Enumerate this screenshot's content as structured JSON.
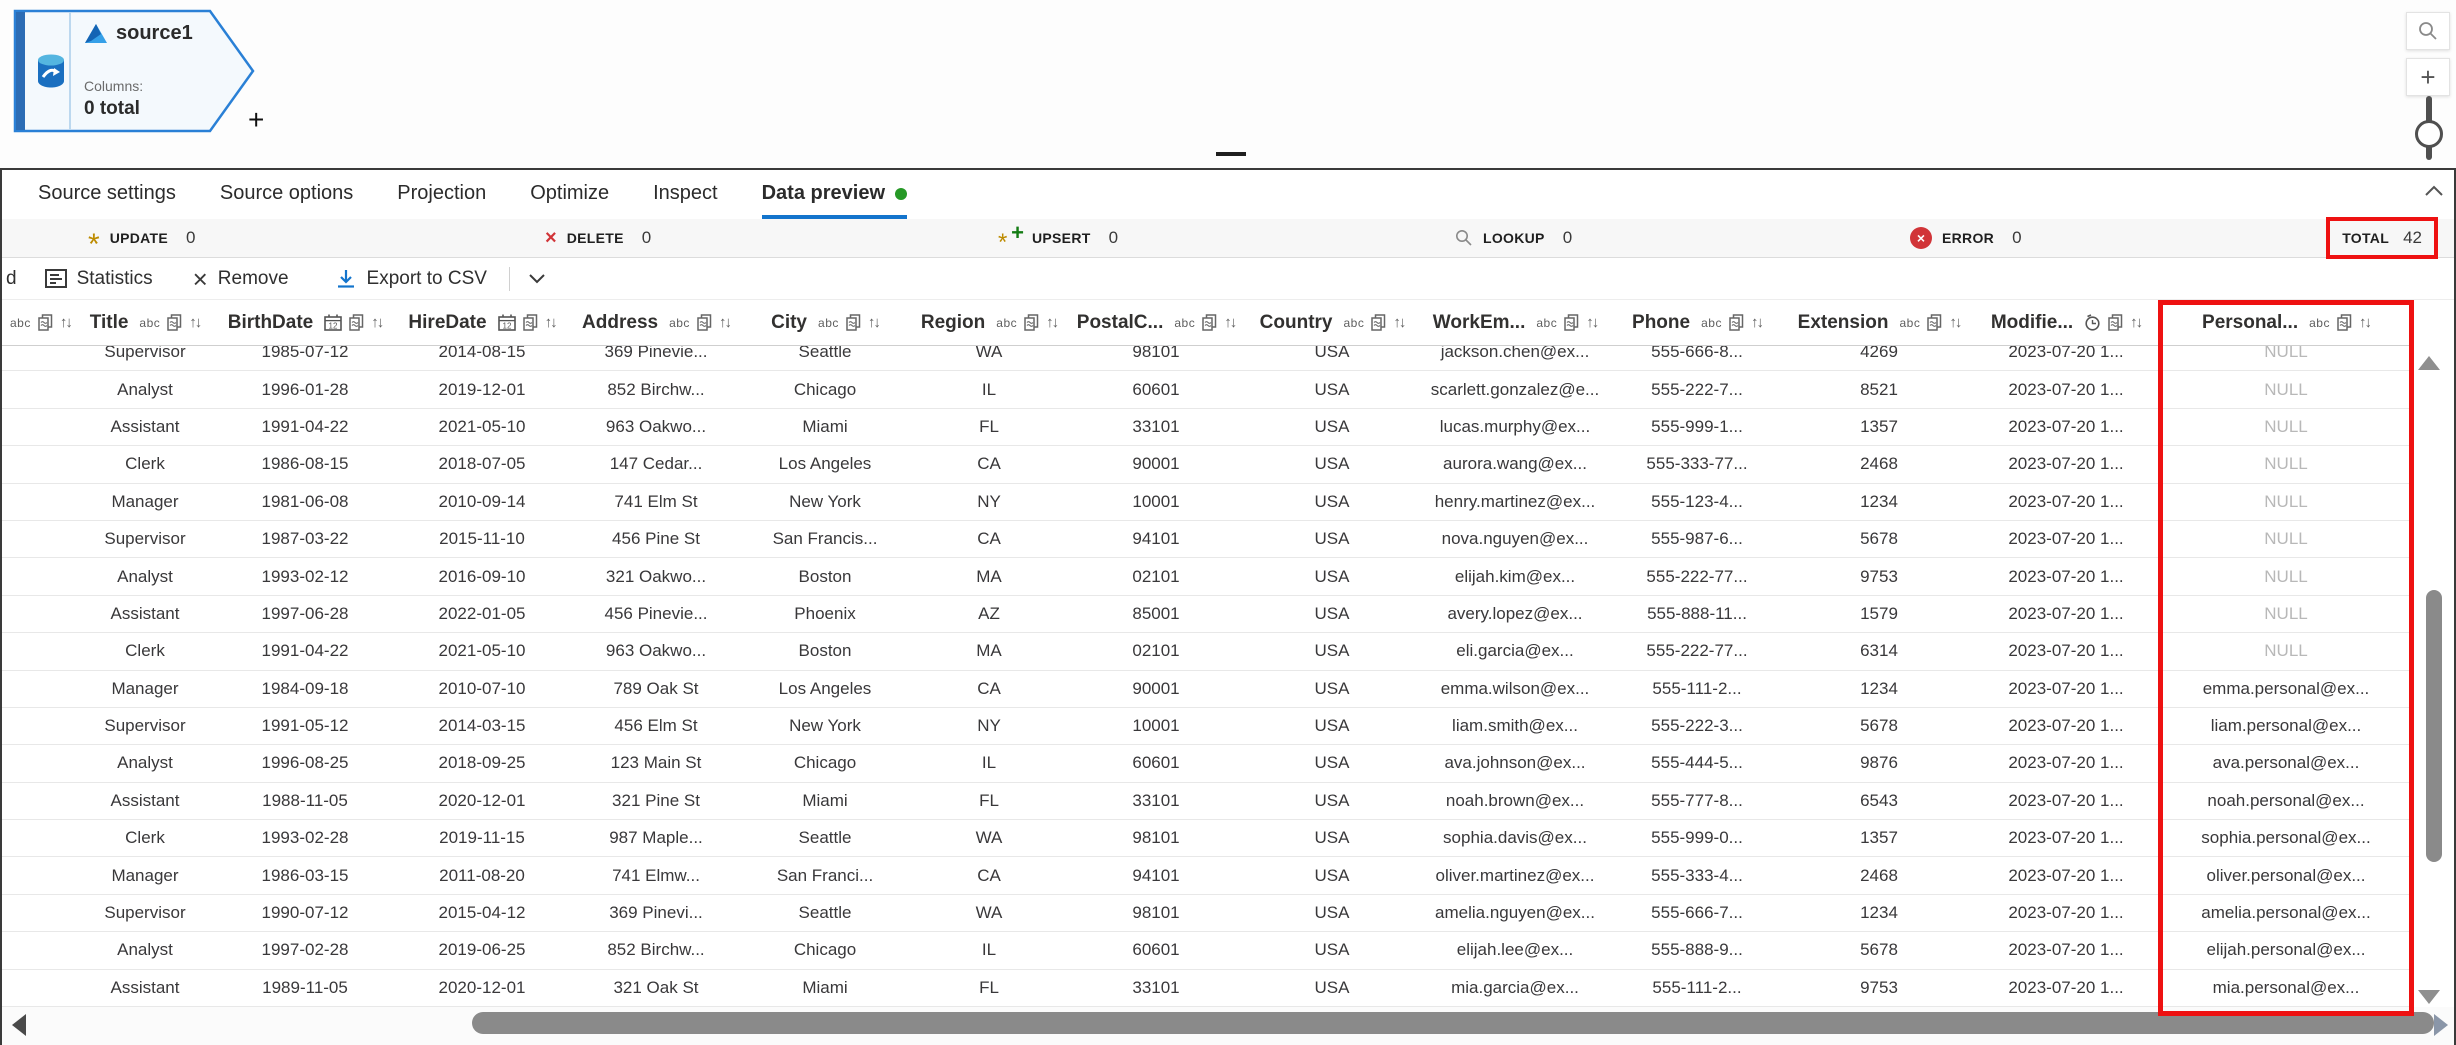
{
  "canvas": {
    "node": {
      "title": "source1",
      "columns_label": "Columns:",
      "columns_value": "0 total",
      "add_button": "+"
    }
  },
  "tabs": [
    {
      "label": "Source settings"
    },
    {
      "label": "Source options"
    },
    {
      "label": "Projection"
    },
    {
      "label": "Optimize"
    },
    {
      "label": "Inspect"
    },
    {
      "label": "Data preview",
      "active": true,
      "has_green_dot": true
    }
  ],
  "status_bar": {
    "items": [
      {
        "label": "UPDATE",
        "count": "0",
        "icon": "update-asterisk-icon"
      },
      {
        "label": "DELETE",
        "count": "0",
        "icon": "delete-x-icon"
      },
      {
        "label": "UPSERT",
        "count": "0",
        "icon": "upsert-plus-icon"
      },
      {
        "label": "LOOKUP",
        "count": "0",
        "icon": "lookup-magnifier-icon"
      },
      {
        "label": "ERROR",
        "count": "0",
        "icon": "error-circle-icon"
      }
    ],
    "total": {
      "label": "TOTAL",
      "count": "42",
      "annotated": true
    }
  },
  "toolbar": {
    "truncated_text": "d",
    "statistics_label": "Statistics",
    "remove_label": "Remove",
    "export_label": "Export to CSV"
  },
  "icons": {
    "update": "*",
    "delete": "×",
    "upsert_plus": "+",
    "upsert_star": "*",
    "error": "×",
    "remove": "×",
    "sort": "↑↓",
    "type_string": "abc"
  },
  "table": {
    "columns": [
      {
        "name": "",
        "type": "string",
        "note": "truncated-at-left-edge"
      },
      {
        "name": "Title",
        "type": "string"
      },
      {
        "name": "BirthDate",
        "type": "date"
      },
      {
        "name": "HireDate",
        "type": "date"
      },
      {
        "name": "Address",
        "type": "string"
      },
      {
        "name": "City",
        "type": "string"
      },
      {
        "name": "Region",
        "type": "string"
      },
      {
        "name": "PostalC...",
        "type": "string"
      },
      {
        "name": "Country",
        "type": "string"
      },
      {
        "name": "WorkEm...",
        "type": "string"
      },
      {
        "name": "Phone",
        "type": "string"
      },
      {
        "name": "Extension",
        "type": "string"
      },
      {
        "name": "Modifie...",
        "type": "timestamp"
      },
      {
        "name": "Personal...",
        "type": "string"
      }
    ],
    "rows": [
      [
        "Supervisor",
        "1985-07-12",
        "2014-08-15",
        "369 Pinevie...",
        "Seattle",
        "WA",
        "98101",
        "USA",
        "jackson.chen@ex...",
        "555-666-8...",
        "4269",
        "2023-07-20 1...",
        "NULL"
      ],
      [
        "Analyst",
        "1996-01-28",
        "2019-12-01",
        "852 Birchw...",
        "Chicago",
        "IL",
        "60601",
        "USA",
        "scarlett.gonzalez@e...",
        "555-222-7...",
        "8521",
        "2023-07-20 1...",
        "NULL"
      ],
      [
        "Assistant",
        "1991-04-22",
        "2021-05-10",
        "963 Oakwo...",
        "Miami",
        "FL",
        "33101",
        "USA",
        "lucas.murphy@ex...",
        "555-999-1...",
        "1357",
        "2023-07-20 1...",
        "NULL"
      ],
      [
        "Clerk",
        "1986-08-15",
        "2018-07-05",
        "147 Cedar...",
        "Los Angeles",
        "CA",
        "90001",
        "USA",
        "aurora.wang@ex...",
        "555-333-77...",
        "2468",
        "2023-07-20 1...",
        "NULL"
      ],
      [
        "Manager",
        "1981-06-08",
        "2010-09-14",
        "741 Elm St",
        "New York",
        "NY",
        "10001",
        "USA",
        "henry.martinez@ex...",
        "555-123-4...",
        "1234",
        "2023-07-20 1...",
        "NULL"
      ],
      [
        "Supervisor",
        "1987-03-22",
        "2015-11-10",
        "456 Pine St",
        "San Francis...",
        "CA",
        "94101",
        "USA",
        "nova.nguyen@ex...",
        "555-987-6...",
        "5678",
        "2023-07-20 1...",
        "NULL"
      ],
      [
        "Analyst",
        "1993-02-12",
        "2016-09-10",
        "321 Oakwo...",
        "Boston",
        "MA",
        "02101",
        "USA",
        "elijah.kim@ex...",
        "555-222-77...",
        "9753",
        "2023-07-20 1...",
        "NULL"
      ],
      [
        "Assistant",
        "1997-06-28",
        "2022-01-05",
        "456 Pinevie...",
        "Phoenix",
        "AZ",
        "85001",
        "USA",
        "avery.lopez@ex...",
        "555-888-11...",
        "1579",
        "2023-07-20 1...",
        "NULL"
      ],
      [
        "Clerk",
        "1991-04-22",
        "2021-05-10",
        "963 Oakwo...",
        "Boston",
        "MA",
        "02101",
        "USA",
        "eli.garcia@ex...",
        "555-222-77...",
        "6314",
        "2023-07-20 1...",
        "NULL"
      ],
      [
        "Manager",
        "1984-09-18",
        "2010-07-10",
        "789 Oak St",
        "Los Angeles",
        "CA",
        "90001",
        "USA",
        "emma.wilson@ex...",
        "555-111-2...",
        "1234",
        "2023-07-20 1...",
        "emma.personal@ex..."
      ],
      [
        "Supervisor",
        "1991-05-12",
        "2014-03-15",
        "456 Elm St",
        "New York",
        "NY",
        "10001",
        "USA",
        "liam.smith@ex...",
        "555-222-3...",
        "5678",
        "2023-07-20 1...",
        "liam.personal@ex..."
      ],
      [
        "Analyst",
        "1996-08-25",
        "2018-09-25",
        "123 Main St",
        "Chicago",
        "IL",
        "60601",
        "USA",
        "ava.johnson@ex...",
        "555-444-5...",
        "9876",
        "2023-07-20 1...",
        "ava.personal@ex..."
      ],
      [
        "Assistant",
        "1988-11-05",
        "2020-12-01",
        "321 Pine St",
        "Miami",
        "FL",
        "33101",
        "USA",
        "noah.brown@ex...",
        "555-777-8...",
        "6543",
        "2023-07-20 1...",
        "noah.personal@ex..."
      ],
      [
        "Clerk",
        "1993-02-28",
        "2019-11-15",
        "987 Maple...",
        "Seattle",
        "WA",
        "98101",
        "USA",
        "sophia.davis@ex...",
        "555-999-0...",
        "1357",
        "2023-07-20 1...",
        "sophia.personal@ex..."
      ],
      [
        "Manager",
        "1986-03-15",
        "2011-08-20",
        "741 Elmw...",
        "San Franci...",
        "CA",
        "94101",
        "USA",
        "oliver.martinez@ex...",
        "555-333-4...",
        "2468",
        "2023-07-20 1...",
        "oliver.personal@ex..."
      ],
      [
        "Supervisor",
        "1990-07-12",
        "2015-04-12",
        "369 Pinevi...",
        "Seattle",
        "WA",
        "98101",
        "USA",
        "amelia.nguyen@ex...",
        "555-666-7...",
        "1234",
        "2023-07-20 1...",
        "amelia.personal@ex..."
      ],
      [
        "Analyst",
        "1997-02-28",
        "2019-06-25",
        "852 Birchw...",
        "Chicago",
        "IL",
        "60601",
        "USA",
        "elijah.lee@ex...",
        "555-888-9...",
        "5678",
        "2023-07-20 1...",
        "elijah.personal@ex..."
      ],
      [
        "Assistant",
        "1989-11-05",
        "2020-12-01",
        "321 Oak St",
        "Miami",
        "FL",
        "33101",
        "USA",
        "mia.garcia@ex...",
        "555-111-2...",
        "9753",
        "2023-07-20 1...",
        "mia.personal@ex..."
      ]
    ],
    "null_display": "NULL"
  },
  "colors": {
    "accent_blue": "#1374cc",
    "green_dot": "#269926",
    "annotation_red": "#ee1111",
    "error_red": "#d13438",
    "gold": "#bd8b00",
    "upsert_green": "#147c14",
    "null_gray": "#b8b8b8"
  }
}
